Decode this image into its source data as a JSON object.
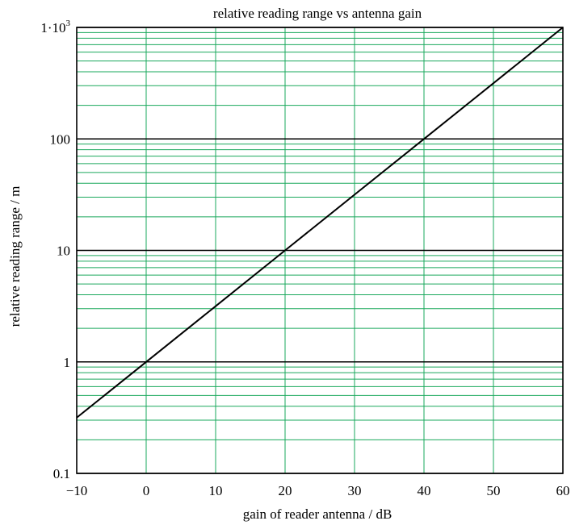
{
  "chart_data": {
    "type": "line",
    "title": "relative reading range vs antenna gain",
    "xlabel": "gain of reader antenna / dB",
    "ylabel": "relative reading range / m",
    "xlim": [
      -10,
      60
    ],
    "ylim": [
      0.1,
      1000
    ],
    "yscale": "log",
    "grid": true,
    "x_ticks": [
      -10,
      0,
      10,
      20,
      30,
      40,
      50,
      60
    ],
    "x_tick_labels": [
      "−10",
      "0",
      "10",
      "20",
      "30",
      "40",
      "50",
      "60"
    ],
    "y_ticks": [
      0.1,
      1,
      10,
      100,
      1000
    ],
    "y_tick_labels": [
      "0.1",
      "1",
      "10",
      "100",
      "1·10³"
    ],
    "series": [
      {
        "x": [
          -10,
          0,
          10,
          20,
          30,
          40,
          50,
          60
        ],
        "y": [
          0.316,
          1,
          3.16,
          10,
          31.6,
          100,
          316,
          1000
        ],
        "color": "#000000"
      }
    ],
    "colors": {
      "minor_grid": "#1aa85c",
      "major_grid": "#000000",
      "line": "#000000"
    }
  }
}
